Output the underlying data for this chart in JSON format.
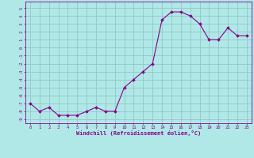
{
  "x": [
    0,
    1,
    2,
    3,
    4,
    5,
    6,
    7,
    8,
    9,
    10,
    11,
    12,
    13,
    14,
    15,
    16,
    17,
    18,
    19,
    20,
    21,
    22,
    23
  ],
  "y": [
    -7,
    -8,
    -7.5,
    -8.5,
    -8.5,
    -8.5,
    -8,
    -7.5,
    -8,
    -8,
    -5,
    -4,
    -3,
    -2,
    3.5,
    4.5,
    4.5,
    4,
    3,
    1,
    1,
    2.5,
    1.5,
    1.5
  ],
  "line_color": "#880088",
  "marker_color": "#880088",
  "bg_color": "#b0e8e8",
  "grid_color": "#90c8c8",
  "xlabel": "Windchill (Refroidissement éolien,°C)",
  "ylabel_ticks": [
    5,
    4,
    3,
    2,
    1,
    0,
    -1,
    -2,
    -3,
    -4,
    -5,
    -6,
    -7,
    -8,
    -9
  ],
  "ylim": [
    -9.5,
    5.8
  ],
  "xlim": [
    -0.5,
    23.5
  ],
  "title": ""
}
